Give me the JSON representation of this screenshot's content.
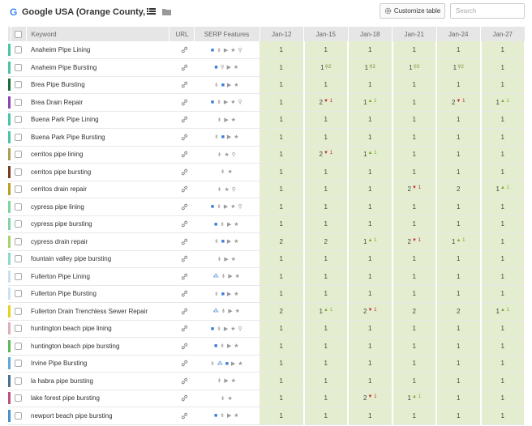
{
  "header": {
    "logo_letter": "G",
    "title": "Google USA (Orange County, ...",
    "customize_label": "Customize table",
    "search_placeholder": "Search"
  },
  "columns": {
    "keyword": "Keyword",
    "url": "URL",
    "serp": "SERP Features",
    "dates": [
      "Jan-12",
      "Jan-15",
      "Jan-18",
      "Jan-21",
      "Jan-24",
      "Jan-27"
    ]
  },
  "colors": {
    "rank_cell_bg": "#e4edcf",
    "up": "#7aaa2f",
    "down": "#b92c2c",
    "serp_blue": "#3a7bd5"
  },
  "icons": {
    "serp_glyphs": "■ ⇟ ▶ ★ ⚲ ⁂",
    "up_arrow": "▲",
    "down_arrow": "▼",
    "pin": "⚲"
  },
  "rows": [
    {
      "keyword": "Anaheim Pipe Lining",
      "color": "#4cc3a8",
      "serp": "■ ⇟ ▶ ★ ⚲",
      "ranks": [
        {
          "r": "1",
          "c": ""
        },
        {
          "r": "1",
          "c": ""
        },
        {
          "r": "1",
          "c": ""
        },
        {
          "r": "1",
          "c": ""
        },
        {
          "r": "1",
          "c": ""
        },
        {
          "r": "1",
          "c": ""
        }
      ]
    },
    {
      "keyword": "Anaheim Pipe Bursting",
      "color": "#4cc3a8",
      "serp": "■ ⚲ ▶ ★",
      "ranks": [
        {
          "r": "1",
          "c": ""
        },
        {
          "r": "1",
          "c": "pin2"
        },
        {
          "r": "1",
          "c": "pin2"
        },
        {
          "r": "1",
          "c": "pin2"
        },
        {
          "r": "1",
          "c": "pin2"
        },
        {
          "r": "1",
          "c": ""
        }
      ]
    },
    {
      "keyword": "Brea Pipe Bursting",
      "color": "#1a6b3a",
      "serp": "⇟ ■ ▶ ★",
      "ranks": [
        {
          "r": "1",
          "c": ""
        },
        {
          "r": "1",
          "c": ""
        },
        {
          "r": "1",
          "c": ""
        },
        {
          "r": "1",
          "c": ""
        },
        {
          "r": "1",
          "c": ""
        },
        {
          "r": "1",
          "c": ""
        }
      ]
    },
    {
      "keyword": "Brea Drain Repair",
      "color": "#8e44ad",
      "serp": "■ ⇟ ▶ ★ ⚲",
      "ranks": [
        {
          "r": "1",
          "c": ""
        },
        {
          "r": "2",
          "c": "d1"
        },
        {
          "r": "1",
          "c": "u1"
        },
        {
          "r": "1",
          "c": ""
        },
        {
          "r": "2",
          "c": "d1"
        },
        {
          "r": "1",
          "c": "u1"
        }
      ]
    },
    {
      "keyword": "Buena Park Pipe Lining",
      "color": "#4cc3a8",
      "serp": "⇟ ▶ ★",
      "ranks": [
        {
          "r": "1",
          "c": ""
        },
        {
          "r": "1",
          "c": ""
        },
        {
          "r": "1",
          "c": ""
        },
        {
          "r": "1",
          "c": ""
        },
        {
          "r": "1",
          "c": ""
        },
        {
          "r": "1",
          "c": ""
        }
      ]
    },
    {
      "keyword": "Buena Park Pipe Bursting",
      "color": "#4cc3a8",
      "serp": "⇟ ■ ▶ ★",
      "ranks": [
        {
          "r": "1",
          "c": ""
        },
        {
          "r": "1",
          "c": ""
        },
        {
          "r": "1",
          "c": ""
        },
        {
          "r": "1",
          "c": ""
        },
        {
          "r": "1",
          "c": ""
        },
        {
          "r": "1",
          "c": ""
        }
      ]
    },
    {
      "keyword": "cerritos pipe lining",
      "color": "#a8a050",
      "serp": "⇟ ★ ⚲",
      "ranks": [
        {
          "r": "1",
          "c": ""
        },
        {
          "r": "2",
          "c": "d1"
        },
        {
          "r": "1",
          "c": "u1"
        },
        {
          "r": "1",
          "c": ""
        },
        {
          "r": "1",
          "c": ""
        },
        {
          "r": "1",
          "c": ""
        }
      ]
    },
    {
      "keyword": "cerritos pipe bursting",
      "color": "#7a3b1e",
      "serp": "⇟ ★",
      "ranks": [
        {
          "r": "1",
          "c": ""
        },
        {
          "r": "1",
          "c": ""
        },
        {
          "r": "1",
          "c": ""
        },
        {
          "r": "1",
          "c": ""
        },
        {
          "r": "1",
          "c": ""
        },
        {
          "r": "1",
          "c": ""
        }
      ]
    },
    {
      "keyword": "cerritos drain repair",
      "color": "#b8a020",
      "serp": "⇟ ★ ⚲",
      "ranks": [
        {
          "r": "1",
          "c": ""
        },
        {
          "r": "1",
          "c": ""
        },
        {
          "r": "1",
          "c": ""
        },
        {
          "r": "2",
          "c": "d1"
        },
        {
          "r": "2",
          "c": ""
        },
        {
          "r": "1",
          "c": "u1"
        }
      ]
    },
    {
      "keyword": "cypress pipe lining",
      "color": "#7fd4a0",
      "serp": "■ ⇟ ▶ ★ ⚲",
      "ranks": [
        {
          "r": "1",
          "c": ""
        },
        {
          "r": "1",
          "c": ""
        },
        {
          "r": "1",
          "c": ""
        },
        {
          "r": "1",
          "c": ""
        },
        {
          "r": "1",
          "c": ""
        },
        {
          "r": "1",
          "c": ""
        }
      ]
    },
    {
      "keyword": "cypress pipe bursting",
      "color": "#7fd4a0",
      "serp": "■ ⇟ ▶ ★",
      "ranks": [
        {
          "r": "1",
          "c": ""
        },
        {
          "r": "1",
          "c": ""
        },
        {
          "r": "1",
          "c": ""
        },
        {
          "r": "1",
          "c": ""
        },
        {
          "r": "1",
          "c": ""
        },
        {
          "r": "1",
          "c": ""
        }
      ]
    },
    {
      "keyword": "cypress drain repair",
      "color": "#a6d468",
      "serp": "⇟ ■ ▶ ★",
      "ranks": [
        {
          "r": "2",
          "c": ""
        },
        {
          "r": "2",
          "c": ""
        },
        {
          "r": "1",
          "c": "u1"
        },
        {
          "r": "2",
          "c": "d1"
        },
        {
          "r": "1",
          "c": "u1"
        },
        {
          "r": "1",
          "c": ""
        }
      ]
    },
    {
      "keyword": "fountain valley pipe bursting",
      "color": "#8fd8d0",
      "serp": "⇟ ▶ ★",
      "ranks": [
        {
          "r": "1",
          "c": ""
        },
        {
          "r": "1",
          "c": ""
        },
        {
          "r": "1",
          "c": ""
        },
        {
          "r": "1",
          "c": ""
        },
        {
          "r": "1",
          "c": ""
        },
        {
          "r": "1",
          "c": ""
        }
      ]
    },
    {
      "keyword": "Fullerton Pipe Lining",
      "color": "#cde0f0",
      "serp": "⁂ ⇟ ▶ ★",
      "ranks": [
        {
          "r": "1",
          "c": ""
        },
        {
          "r": "1",
          "c": ""
        },
        {
          "r": "1",
          "c": ""
        },
        {
          "r": "1",
          "c": ""
        },
        {
          "r": "1",
          "c": ""
        },
        {
          "r": "1",
          "c": ""
        }
      ]
    },
    {
      "keyword": "Fullerton Pipe Bursting",
      "color": "#cde0f0",
      "serp": "⇟ ■ ▶ ★",
      "ranks": [
        {
          "r": "1",
          "c": ""
        },
        {
          "r": "1",
          "c": ""
        },
        {
          "r": "1",
          "c": ""
        },
        {
          "r": "1",
          "c": ""
        },
        {
          "r": "1",
          "c": ""
        },
        {
          "r": "1",
          "c": ""
        }
      ]
    },
    {
      "keyword": "Fullerton Drain Trenchless Sewer Repair",
      "color": "#e8d020",
      "serp": "⁂ ⇟ ▶ ★",
      "ranks": [
        {
          "r": "2",
          "c": ""
        },
        {
          "r": "1",
          "c": "u1"
        },
        {
          "r": "2",
          "c": "d1"
        },
        {
          "r": "2",
          "c": ""
        },
        {
          "r": "2",
          "c": ""
        },
        {
          "r": "1",
          "c": "u1"
        }
      ]
    },
    {
      "keyword": "huntington beach pipe lining",
      "color": "#e0b0b8",
      "serp": "■ ⇟ ▶ ★ ⚲",
      "ranks": [
        {
          "r": "1",
          "c": ""
        },
        {
          "r": "1",
          "c": ""
        },
        {
          "r": "1",
          "c": ""
        },
        {
          "r": "1",
          "c": ""
        },
        {
          "r": "1",
          "c": ""
        },
        {
          "r": "1",
          "c": ""
        }
      ]
    },
    {
      "keyword": "huntington beach pipe bursting",
      "color": "#5cb85c",
      "serp": "■ ⇟ ▶ ★",
      "ranks": [
        {
          "r": "1",
          "c": ""
        },
        {
          "r": "1",
          "c": ""
        },
        {
          "r": "1",
          "c": ""
        },
        {
          "r": "1",
          "c": ""
        },
        {
          "r": "1",
          "c": ""
        },
        {
          "r": "1",
          "c": ""
        }
      ]
    },
    {
      "keyword": "Irvine Pipe Bursting",
      "color": "#5fa8d8",
      "serp": "⇟ ⁂ ■ ▶ ★",
      "ranks": [
        {
          "r": "1",
          "c": ""
        },
        {
          "r": "1",
          "c": ""
        },
        {
          "r": "1",
          "c": ""
        },
        {
          "r": "1",
          "c": ""
        },
        {
          "r": "1",
          "c": ""
        },
        {
          "r": "1",
          "c": ""
        }
      ]
    },
    {
      "keyword": "la habra pipe bursting",
      "color": "#4a7090",
      "serp": "⇟ ▶ ★",
      "ranks": [
        {
          "r": "1",
          "c": ""
        },
        {
          "r": "1",
          "c": ""
        },
        {
          "r": "1",
          "c": ""
        },
        {
          "r": "1",
          "c": ""
        },
        {
          "r": "1",
          "c": ""
        },
        {
          "r": "1",
          "c": ""
        }
      ]
    },
    {
      "keyword": "lake forest pipe bursting",
      "color": "#c05080",
      "serp": "⇟ ★",
      "ranks": [
        {
          "r": "1",
          "c": ""
        },
        {
          "r": "1",
          "c": ""
        },
        {
          "r": "2",
          "c": "d1"
        },
        {
          "r": "1",
          "c": "u1"
        },
        {
          "r": "1",
          "c": ""
        },
        {
          "r": "1",
          "c": ""
        }
      ]
    },
    {
      "keyword": "newport beach pipe bursting",
      "color": "#4a8fc8",
      "serp": "■ ⇟ ▶ ★",
      "ranks": [
        {
          "r": "1",
          "c": ""
        },
        {
          "r": "1",
          "c": ""
        },
        {
          "r": "1",
          "c": ""
        },
        {
          "r": "1",
          "c": ""
        },
        {
          "r": "1",
          "c": ""
        },
        {
          "r": "1",
          "c": ""
        }
      ]
    }
  ]
}
